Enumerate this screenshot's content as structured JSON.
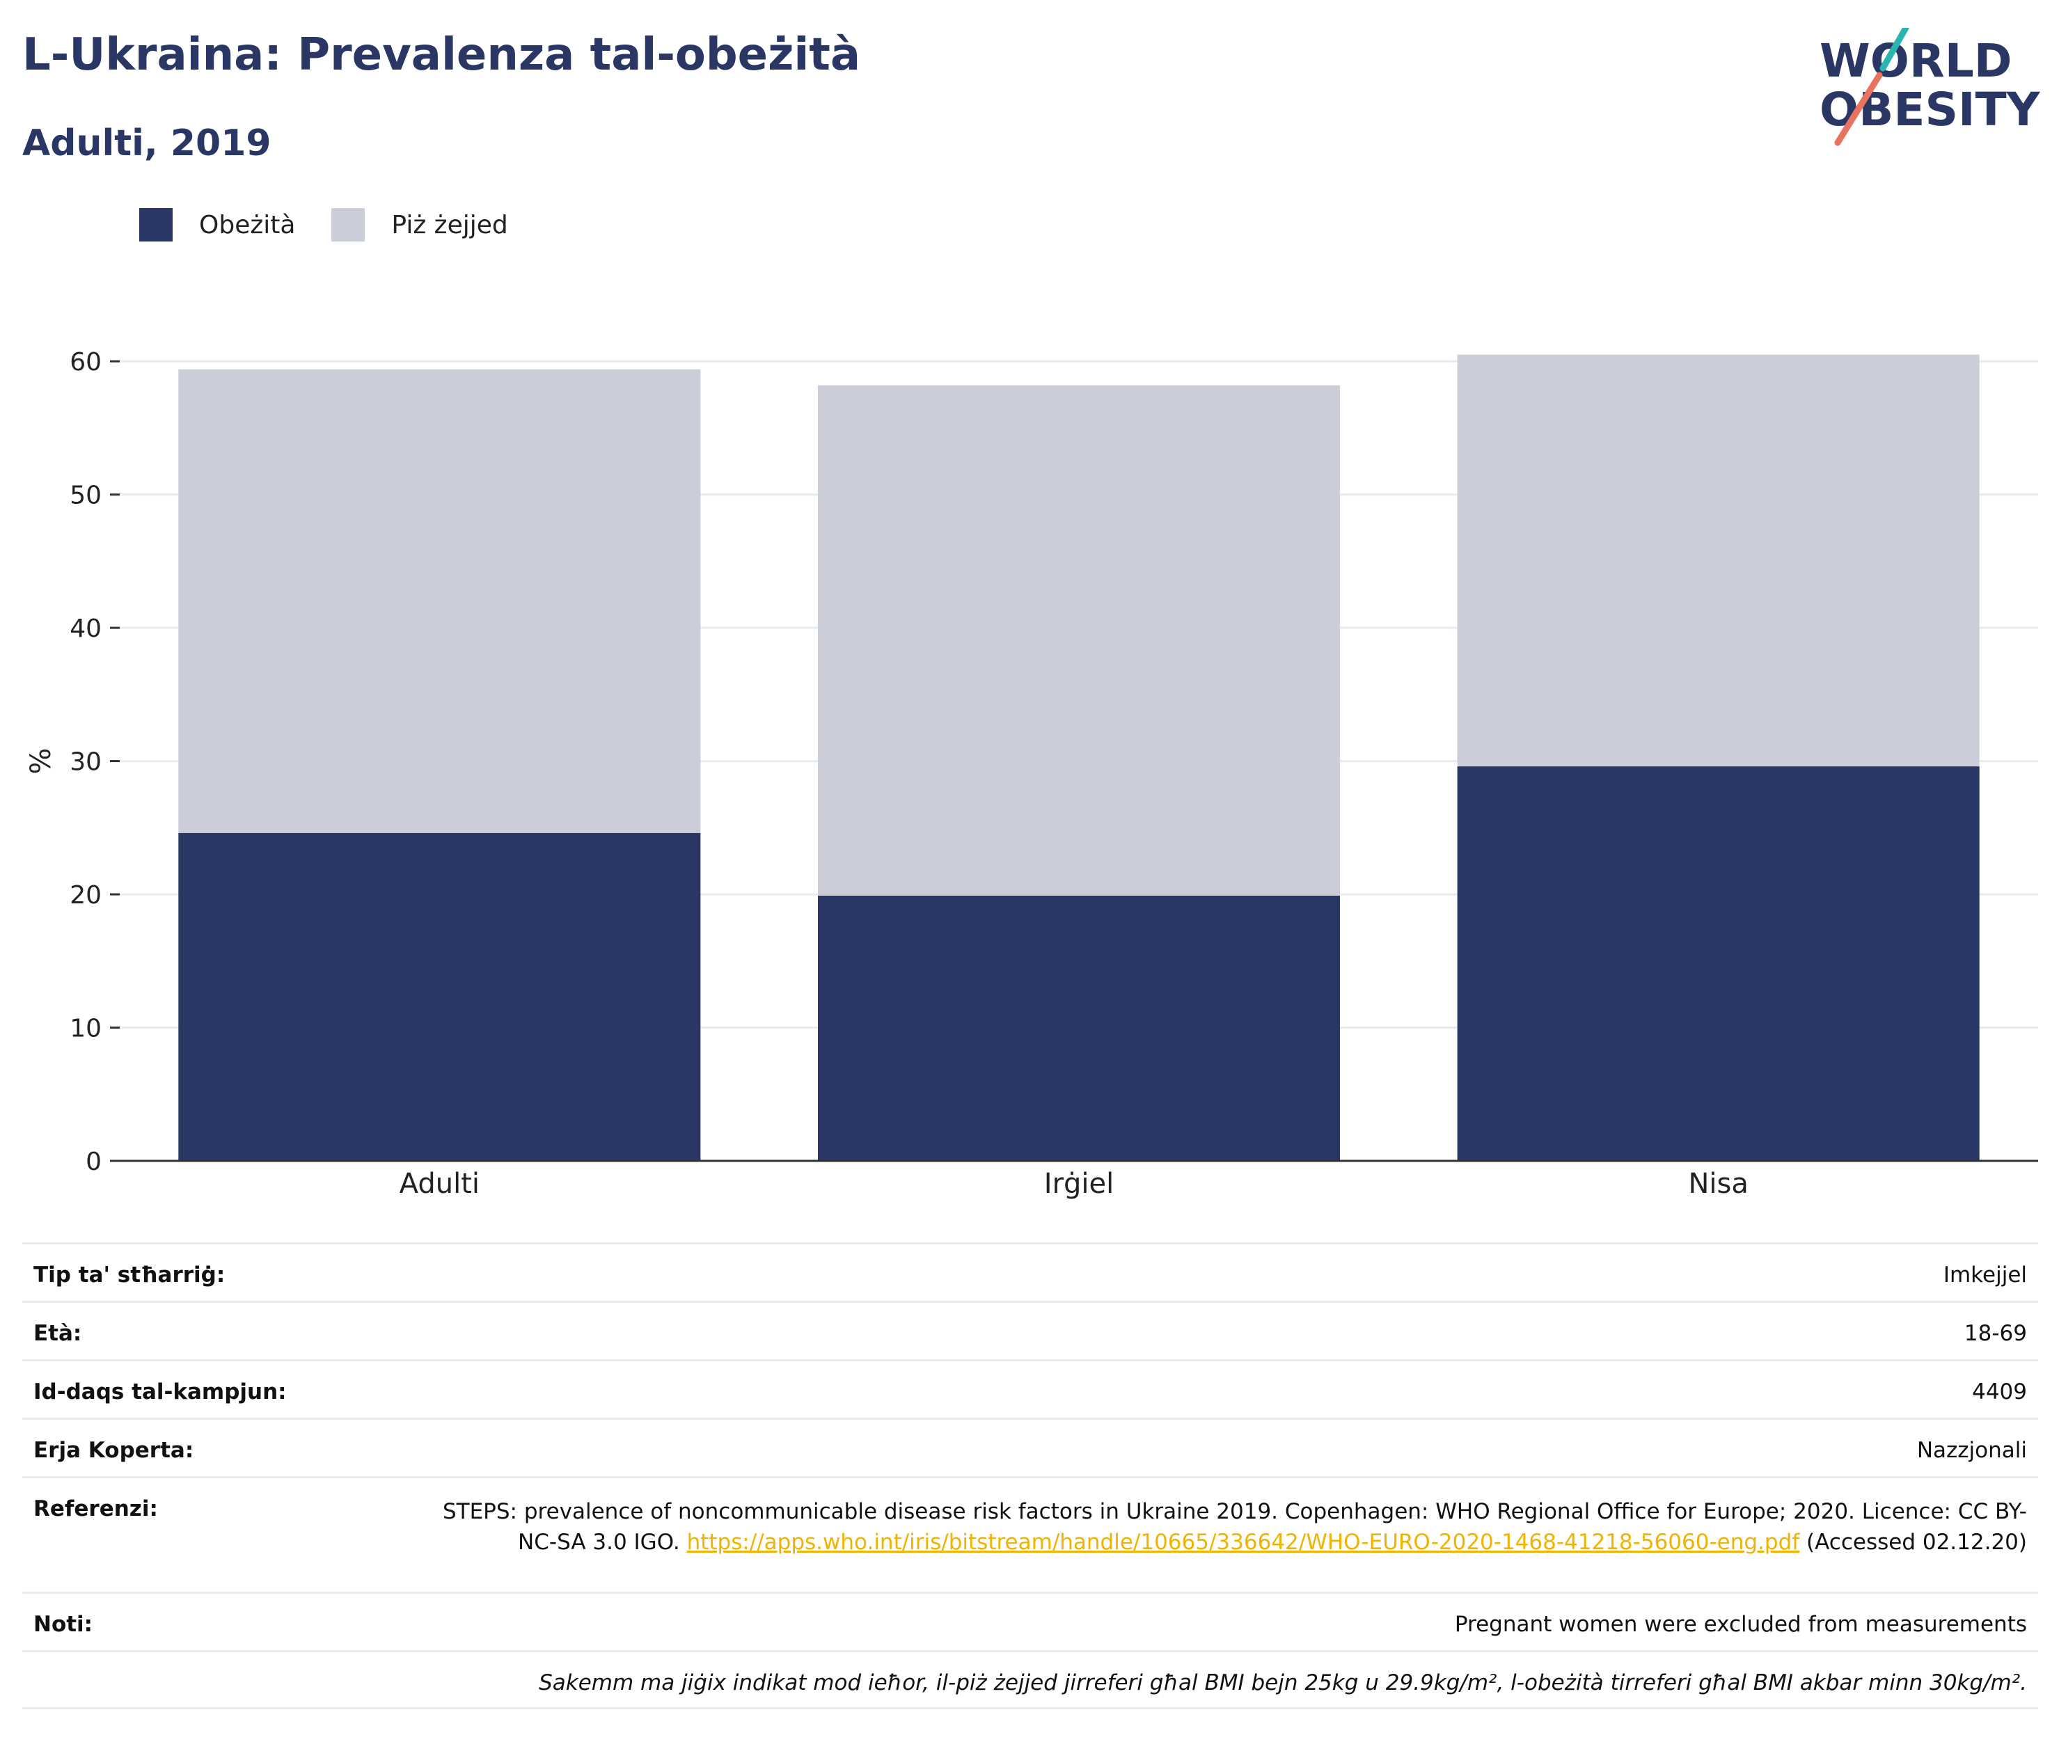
{
  "title": "L-Ukraina: Prevalenza tal-obeżità",
  "subtitle": "Adulti, 2019",
  "logo": {
    "line1": "WORLD",
    "line2": "OBESITY"
  },
  "legend": {
    "obesity": "Obeżità",
    "overweight": "Piż żejjed"
  },
  "colors": {
    "obesity": "#2a3764",
    "overweight": "#cbcdd8",
    "accent_teal": "#2bb5b0",
    "accent_coral": "#e8735e",
    "link": "#f0b400"
  },
  "chart_data": {
    "type": "bar",
    "stacked": false,
    "overlap": true,
    "categories": [
      "Adulti",
      "Irġiel",
      "Nisa"
    ],
    "series": [
      {
        "name": "Piż żejjed",
        "values": [
          59.4,
          58.2,
          60.5
        ]
      },
      {
        "name": "Obeżità",
        "values": [
          24.6,
          19.9,
          29.6
        ]
      }
    ],
    "ylabel": "%",
    "xlabel": "",
    "ylim": [
      0,
      60
    ],
    "yticks": [
      0,
      10,
      20,
      30,
      40,
      50,
      60
    ],
    "grid": true,
    "legend_position": "top-left"
  },
  "info": {
    "survey_type": {
      "label": "Tip ta' stħarriġ:",
      "value": "Imkejjel"
    },
    "age": {
      "label": "Età:",
      "value": "18-69"
    },
    "sample_size": {
      "label": "Id-daqs tal-kampjun:",
      "value": "4409"
    },
    "area": {
      "label": "Erja Koperta:",
      "value": "Nazzjonali"
    },
    "references": {
      "label": "Referenzi:",
      "text_before": "STEPS: prevalence of noncommunicable disease risk factors in Ukraine 2019. Copenhagen: WHO Regional Office for Europe; 2020. Licence: CC BY-NC-SA 3.0 IGO. ",
      "link": "https://apps.who.int/iris/bitstream/handle/10665/336642/WHO-EURO-2020-1468-41218-56060-eng.pdf",
      "text_after": " (Accessed 02.12.20)"
    },
    "notes": {
      "label": "Noti:",
      "value": "Pregnant women were excluded from measurements"
    },
    "footnote": "Sakemm ma jiġix indikat mod ieħor, il-piż żejjed jirreferi għal BMI bejn 25kg u 29.9kg/m², l-obeżità tirreferi għal BMI akbar minn 30kg/m²."
  }
}
